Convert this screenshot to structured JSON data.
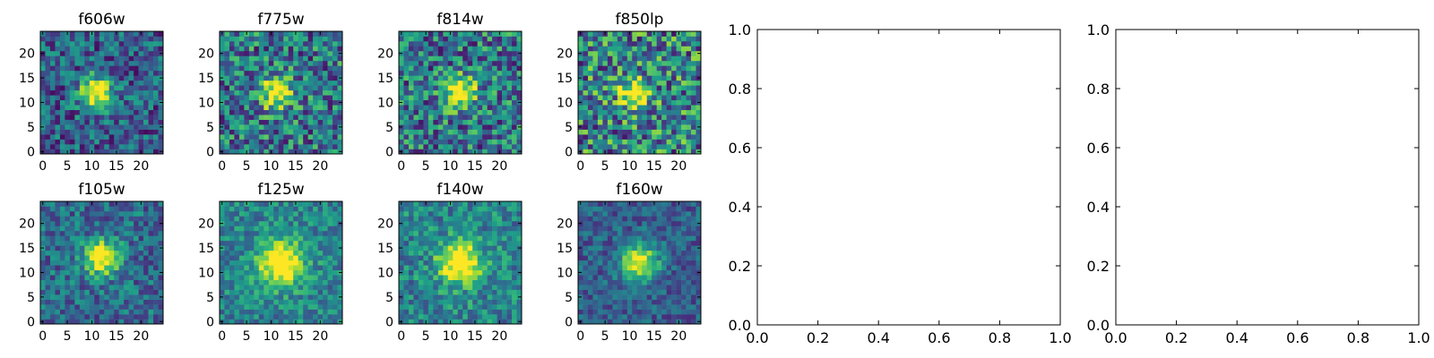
{
  "chart_data": [
    {
      "type": "heatmap",
      "title": "f606w",
      "x_ticks": [
        "0",
        "5",
        "10",
        "15",
        "20"
      ],
      "y_ticks": [
        "0",
        "5",
        "10",
        "15",
        "20"
      ],
      "grid_size": 25,
      "peak": [
        11,
        12
      ],
      "spread": 2.4,
      "noise": 0.55,
      "base": 0.3,
      "seed": 11
    },
    {
      "type": "heatmap",
      "title": "f775w",
      "x_ticks": [
        "0",
        "5",
        "10",
        "15",
        "20"
      ],
      "y_ticks": [
        "0",
        "5",
        "10",
        "15",
        "20"
      ],
      "grid_size": 25,
      "peak": [
        11,
        12
      ],
      "spread": 2.2,
      "noise": 0.7,
      "base": 0.4,
      "seed": 23
    },
    {
      "type": "heatmap",
      "title": "f814w",
      "x_ticks": [
        "0",
        "5",
        "10",
        "15",
        "20"
      ],
      "y_ticks": [
        "0",
        "5",
        "10",
        "15",
        "20"
      ],
      "grid_size": 25,
      "peak": [
        12,
        12
      ],
      "spread": 2.2,
      "noise": 0.7,
      "base": 0.4,
      "seed": 37
    },
    {
      "type": "heatmap",
      "title": "f850lp",
      "x_ticks": [
        "0",
        "5",
        "10",
        "15",
        "20"
      ],
      "y_ticks": [
        "0",
        "5",
        "10",
        "15",
        "20"
      ],
      "grid_size": 25,
      "peak": [
        11,
        12
      ],
      "spread": 2.0,
      "noise": 0.8,
      "base": 0.45,
      "seed": 41
    },
    {
      "type": "heatmap",
      "title": "f105w",
      "x_ticks": [
        "0",
        "5",
        "10",
        "15",
        "20"
      ],
      "y_ticks": [
        "0",
        "5",
        "10",
        "15",
        "20"
      ],
      "grid_size": 25,
      "peak": [
        12,
        13
      ],
      "spread": 2.5,
      "noise": 0.45,
      "base": 0.35,
      "seed": 53
    },
    {
      "type": "heatmap",
      "title": "f125w",
      "x_ticks": [
        "0",
        "5",
        "10",
        "15",
        "20"
      ],
      "y_ticks": [
        "0",
        "5",
        "10",
        "15",
        "20"
      ],
      "grid_size": 25,
      "peak": [
        12,
        12
      ],
      "spread": 3.2,
      "noise": 0.4,
      "base": 0.45,
      "seed": 67
    },
    {
      "type": "heatmap",
      "title": "f140w",
      "x_ticks": [
        "0",
        "5",
        "10",
        "15",
        "20"
      ],
      "y_ticks": [
        "0",
        "5",
        "10",
        "15",
        "20"
      ],
      "grid_size": 25,
      "peak": [
        12,
        12
      ],
      "spread": 3.0,
      "noise": 0.45,
      "base": 0.45,
      "seed": 79
    },
    {
      "type": "heatmap",
      "title": "f160w",
      "x_ticks": [
        "0",
        "5",
        "10",
        "15",
        "20"
      ],
      "y_ticks": [
        "0",
        "5",
        "10",
        "15",
        "20"
      ],
      "grid_size": 25,
      "peak": [
        12,
        12
      ],
      "spread": 2.6,
      "noise": 0.35,
      "base": 0.3,
      "seed": 83
    },
    {
      "type": "scatter",
      "title": "",
      "xlim": [
        0.0,
        1.0
      ],
      "ylim": [
        0.0,
        1.0
      ],
      "x_ticks": [
        "0.0",
        "0.2",
        "0.4",
        "0.6",
        "0.8",
        "1.0"
      ],
      "y_ticks": [
        "0.0",
        "0.2",
        "0.4",
        "0.6",
        "0.8",
        "1.0"
      ]
    },
    {
      "type": "scatter",
      "title": "",
      "xlim": [
        0.0,
        1.0
      ],
      "ylim": [
        0.0,
        1.0
      ],
      "x_ticks": [
        "0.0",
        "0.2",
        "0.4",
        "0.6",
        "0.8",
        "1.0"
      ],
      "y_ticks": [
        "0.0",
        "0.2",
        "0.4",
        "0.6",
        "0.8",
        "1.0"
      ]
    }
  ],
  "colors": {
    "axis": "#000000",
    "background": "#ffffff",
    "colormap": "viridis"
  }
}
